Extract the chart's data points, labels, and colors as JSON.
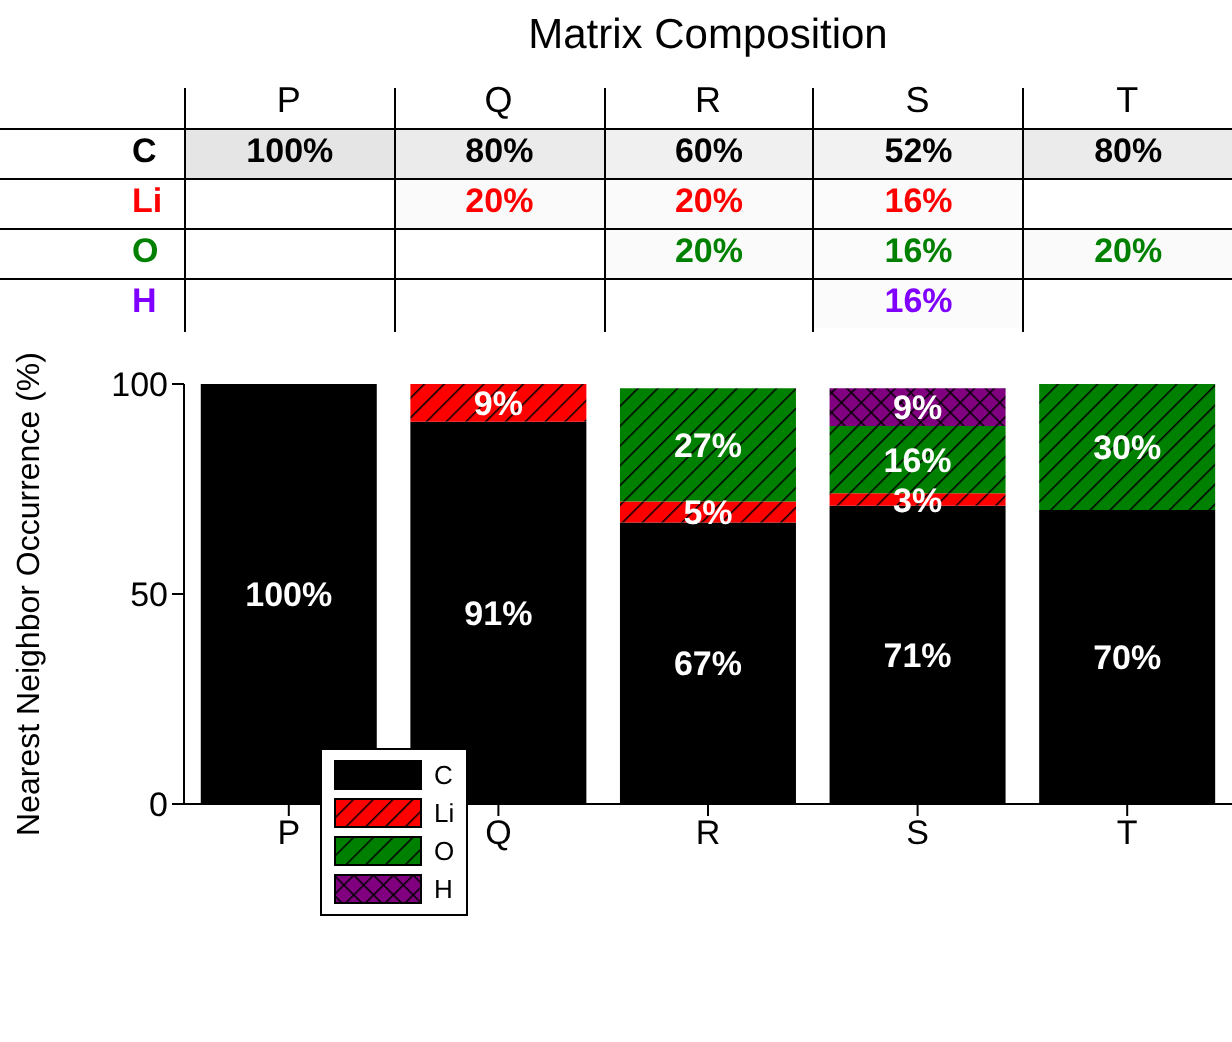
{
  "chart_data": [
    {
      "type": "heatmap",
      "title": "Matrix Composition",
      "categories": [
        "P",
        "Q",
        "R",
        "S",
        "T"
      ],
      "y_categories": [
        "C",
        "Li",
        "O",
        "H"
      ],
      "colors": [
        "#000000",
        "#ff0000",
        "#008000",
        "#8000ff"
      ],
      "cells": [
        [
          100,
          80,
          60,
          52,
          80
        ],
        [
          null,
          20,
          20,
          16,
          null
        ],
        [
          null,
          null,
          20,
          16,
          20
        ],
        [
          null,
          null,
          null,
          16,
          null
        ]
      ],
      "cell_labels": [
        [
          "100%",
          "80%",
          "60%",
          "52%",
          "80%"
        ],
        [
          null,
          "20%",
          "20%",
          "16%",
          null
        ],
        [
          null,
          null,
          "20%",
          "16%",
          "20%"
        ],
        [
          null,
          null,
          null,
          "16%",
          null
        ]
      ]
    },
    {
      "type": "bar",
      "stacked": true,
      "ylabel": "Nearest Neighbor Occurrence (%)",
      "categories": [
        "P",
        "Q",
        "R",
        "S",
        "T"
      ],
      "ylim": [
        0,
        100
      ],
      "yticks": [
        0,
        50,
        100
      ],
      "legend": "bottom left",
      "grid": false,
      "series": [
        {
          "name": "C",
          "color": "#000000",
          "values": [
            100,
            91,
            67,
            71,
            70
          ],
          "value_labels": [
            "100%",
            "91%",
            "67%",
            "71%",
            "70%"
          ]
        },
        {
          "name": "Li",
          "color": "#ff0000",
          "values": [
            null,
            9,
            5,
            3,
            null
          ],
          "value_labels": [
            null,
            "9%",
            "5%",
            "3%",
            null
          ]
        },
        {
          "name": "O",
          "color": "#008000",
          "values": [
            null,
            null,
            27,
            16,
            30
          ],
          "value_labels": [
            null,
            null,
            "27%",
            "16%",
            "30%"
          ]
        },
        {
          "name": "H",
          "color": "#800080",
          "values": [
            null,
            null,
            null,
            9,
            null
          ],
          "value_labels": [
            null,
            null,
            null,
            "9%",
            null
          ]
        }
      ]
    }
  ]
}
